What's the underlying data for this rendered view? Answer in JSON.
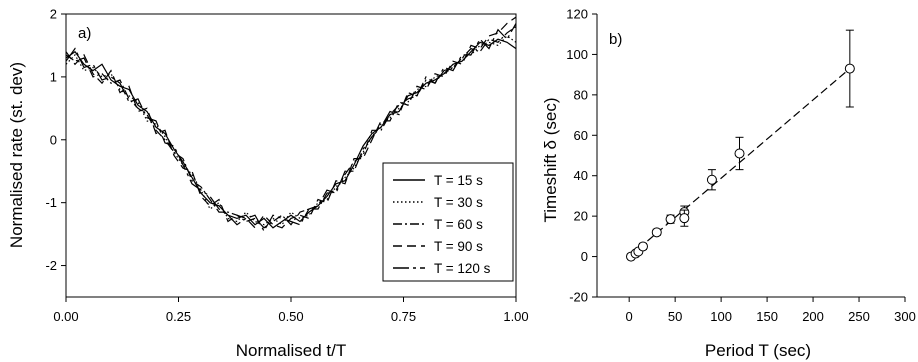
{
  "chart_data": [
    {
      "type": "line",
      "panel_label": "a)",
      "xlabel": "Normalised t/T",
      "ylabel": "Normalised rate (st. dev)",
      "xlim": [
        0,
        1
      ],
      "ylim": [
        -2.5,
        2
      ],
      "xticks": [
        "0.00",
        "0.25",
        "0.50",
        "0.75",
        "1.00"
      ],
      "yticks": [
        "-2",
        "-1",
        "0",
        "1",
        "2"
      ],
      "grid": false,
      "legend_position": "bottom-right",
      "x": [
        0.0,
        0.02,
        0.04,
        0.06,
        0.08,
        0.1,
        0.12,
        0.14,
        0.16,
        0.18,
        0.2,
        0.22,
        0.24,
        0.26,
        0.28,
        0.3,
        0.32,
        0.34,
        0.36,
        0.38,
        0.4,
        0.42,
        0.44,
        0.46,
        0.48,
        0.5,
        0.52,
        0.54,
        0.56,
        0.58,
        0.6,
        0.62,
        0.64,
        0.66,
        0.68,
        0.7,
        0.72,
        0.74,
        0.76,
        0.78,
        0.8,
        0.82,
        0.84,
        0.86,
        0.88,
        0.9,
        0.92,
        0.94,
        0.96,
        0.98,
        1.0
      ],
      "series": [
        {
          "name": "T = 15 s",
          "dash": "solid",
          "values": [
            1.3,
            1.4,
            1.2,
            1.1,
            1.2,
            0.95,
            0.85,
            0.8,
            0.55,
            0.45,
            0.2,
            0.1,
            -0.15,
            -0.35,
            -0.6,
            -0.85,
            -1.0,
            -1.05,
            -1.2,
            -1.25,
            -1.2,
            -1.35,
            -1.25,
            -1.4,
            -1.3,
            -1.2,
            -1.3,
            -1.15,
            -1.05,
            -0.9,
            -0.7,
            -0.65,
            -0.4,
            -0.1,
            0.1,
            0.2,
            0.4,
            0.45,
            0.7,
            0.75,
            0.9,
            0.95,
            1.05,
            1.2,
            1.25,
            1.4,
            1.55,
            1.5,
            1.6,
            1.55,
            1.45
          ]
        },
        {
          "name": "T = 30 s",
          "dash": "dotted",
          "values": [
            1.2,
            1.35,
            1.1,
            1.15,
            1.0,
            1.05,
            0.8,
            0.7,
            0.6,
            0.3,
            0.25,
            0.05,
            -0.2,
            -0.4,
            -0.55,
            -0.8,
            -1.1,
            -1.0,
            -1.25,
            -1.3,
            -1.15,
            -1.3,
            -1.35,
            -1.25,
            -1.35,
            -1.15,
            -1.25,
            -1.2,
            -1.0,
            -0.95,
            -0.75,
            -0.6,
            -0.45,
            -0.2,
            0.05,
            0.25,
            0.35,
            0.5,
            0.6,
            0.8,
            0.85,
            1.0,
            1.05,
            1.15,
            1.3,
            1.35,
            1.5,
            1.55,
            1.5,
            1.65,
            1.55
          ]
        },
        {
          "name": "T = 60 s",
          "dash": "dashdot",
          "values": [
            1.35,
            1.25,
            1.3,
            1.0,
            1.05,
            0.9,
            0.95,
            0.65,
            0.5,
            0.4,
            0.15,
            0.0,
            -0.2,
            -0.3,
            -0.65,
            -0.75,
            -0.95,
            -1.15,
            -1.15,
            -1.2,
            -1.3,
            -1.25,
            -1.4,
            -1.3,
            -1.2,
            -1.35,
            -1.15,
            -1.1,
            -1.1,
            -0.85,
            -0.8,
            -0.55,
            -0.35,
            -0.25,
            0.15,
            0.15,
            0.4,
            0.55,
            0.65,
            0.7,
            0.95,
            0.9,
            1.1,
            1.15,
            1.3,
            1.45,
            1.4,
            1.6,
            1.55,
            1.7,
            1.8
          ]
        },
        {
          "name": "T = 90 s",
          "dash": "dashed",
          "values": [
            1.4,
            1.2,
            1.35,
            1.05,
            0.9,
            1.1,
            0.75,
            0.85,
            0.45,
            0.5,
            0.1,
            0.15,
            -0.25,
            -0.45,
            -0.5,
            -0.9,
            -1.05,
            -0.95,
            -1.3,
            -1.2,
            -1.25,
            -1.4,
            -1.2,
            -1.35,
            -1.4,
            -1.25,
            -1.2,
            -1.25,
            -0.95,
            -1.0,
            -0.65,
            -0.7,
            -0.3,
            -0.3,
            0.0,
            0.3,
            0.3,
            0.6,
            0.55,
            0.85,
            0.8,
            1.05,
            1.0,
            1.25,
            1.2,
            1.5,
            1.45,
            1.65,
            1.7,
            1.85,
            1.95
          ]
        },
        {
          "name": "T = 120 s",
          "dash": "longdashdot",
          "values": [
            1.25,
            1.45,
            1.15,
            1.2,
            0.95,
            1.0,
            0.9,
            0.6,
            0.65,
            0.35,
            0.3,
            -0.05,
            -0.1,
            -0.4,
            -0.7,
            -0.8,
            -0.9,
            -1.1,
            -1.2,
            -1.35,
            -1.25,
            -1.2,
            -1.45,
            -1.2,
            -1.25,
            -1.3,
            -1.35,
            -1.1,
            -1.05,
            -0.8,
            -0.85,
            -0.5,
            -0.5,
            -0.15,
            0.05,
            0.2,
            0.45,
            0.4,
            0.75,
            0.7,
            1.0,
            0.9,
            1.15,
            1.1,
            1.35,
            1.35,
            1.6,
            1.45,
            1.75,
            1.6,
            1.85
          ]
        }
      ]
    },
    {
      "type": "scatter",
      "panel_label": "b)",
      "xlabel": "Period T (sec)",
      "ylabel": "Timeshift  δ (sec)",
      "xlim": [
        -35,
        300
      ],
      "ylim": [
        -20,
        120
      ],
      "xticks": [
        "0",
        "50",
        "100",
        "150",
        "200",
        "250",
        "300"
      ],
      "yticks": [
        "-20",
        "0",
        "20",
        "40",
        "60",
        "80",
        "100",
        "120"
      ],
      "grid": false,
      "points": [
        {
          "x": 2,
          "y": 0,
          "err": 0
        },
        {
          "x": 7,
          "y": 1.5,
          "err": 0
        },
        {
          "x": 10,
          "y": 2.5,
          "err": 0
        },
        {
          "x": 15,
          "y": 5,
          "err": 1.5
        },
        {
          "x": 30,
          "y": 12,
          "err": 1.5
        },
        {
          "x": 45,
          "y": 18.5,
          "err": 2
        },
        {
          "x": 60,
          "y": 22,
          "err": 3
        },
        {
          "x": 60,
          "y": 19,
          "err": 4
        },
        {
          "x": 90,
          "y": 38,
          "err": 5
        },
        {
          "x": 120,
          "y": 51,
          "err": 8
        },
        {
          "x": 240,
          "y": 93,
          "err": 19
        }
      ],
      "fit_line": {
        "x": [
          0,
          240
        ],
        "y": [
          0,
          93
        ],
        "style": "dashed"
      }
    }
  ]
}
